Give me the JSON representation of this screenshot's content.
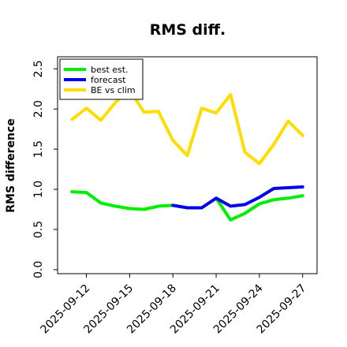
{
  "chart_data": {
    "type": "line",
    "title": "RMS diff.",
    "xlabel": "",
    "ylabel": "RMS difference",
    "x": [
      "2025-09-11",
      "2025-09-12",
      "2025-09-13",
      "2025-09-14",
      "2025-09-15",
      "2025-09-16",
      "2025-09-17",
      "2025-09-18",
      "2025-09-19",
      "2025-09-20",
      "2025-09-21",
      "2025-09-22",
      "2025-09-23",
      "2025-09-24",
      "2025-09-25",
      "2025-09-26",
      "2025-09-27"
    ],
    "xtick_labels": [
      "2025-09-12",
      "2025-09-15",
      "2025-09-18",
      "2025-09-21",
      "2025-09-24",
      "2025-09-27"
    ],
    "xtick_colors": [
      "#000000",
      "#000000",
      "#228b22",
      "#000000",
      "#000000",
      "#000000"
    ],
    "ylim": [
      -0.05,
      2.65
    ],
    "yticks": [
      "0.0",
      "0.5",
      "1.0",
      "1.5",
      "2.0",
      "2.5"
    ],
    "xlim": [
      "2025-09-10",
      "2025-09-28"
    ],
    "grid": false,
    "legend_position": "top-left",
    "series": [
      {
        "name": "best est.",
        "color": "#00ee00",
        "values": [
          0.97,
          0.96,
          0.83,
          0.79,
          0.76,
          0.75,
          0.79,
          0.8,
          null,
          null,
          0.89,
          0.62,
          0.7,
          0.82,
          0.87,
          0.89,
          0.92
        ]
      },
      {
        "name": "forecast",
        "color": "#0000ee",
        "values": [
          null,
          null,
          null,
          null,
          null,
          null,
          null,
          0.8,
          0.77,
          0.77,
          0.89,
          0.79,
          0.81,
          0.9,
          1.01,
          1.02,
          1.03
        ]
      },
      {
        "name": "BE vs clim",
        "color": "#ffdd00",
        "values": [
          1.87,
          2.01,
          1.86,
          2.08,
          2.24,
          1.96,
          1.97,
          1.61,
          1.42,
          2.01,
          1.95,
          2.18,
          1.46,
          1.32,
          1.56,
          1.85,
          1.67
        ]
      }
    ]
  }
}
